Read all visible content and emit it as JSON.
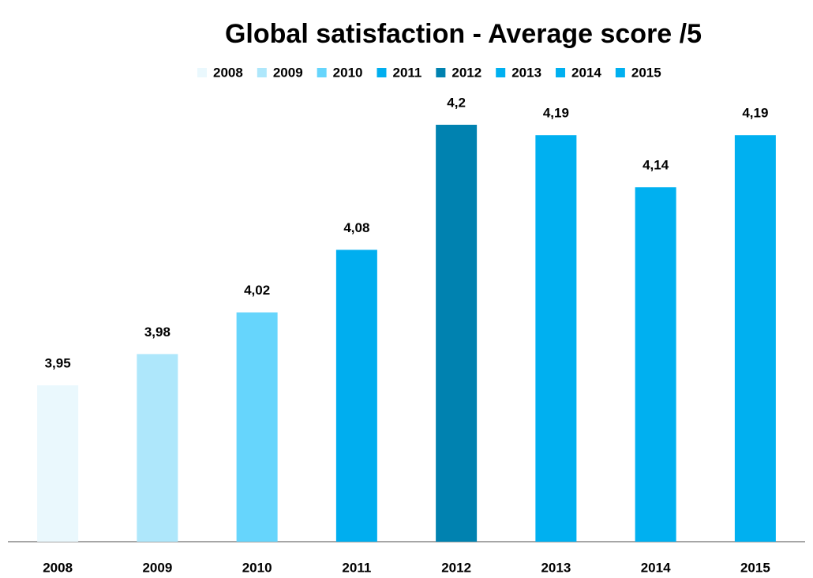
{
  "chart_data": {
    "type": "bar",
    "title": "Global satisfaction - Average score /5",
    "categories": [
      "2008",
      "2009",
      "2010",
      "2011",
      "2012",
      "2013",
      "2014",
      "2015"
    ],
    "values": [
      3.95,
      3.98,
      4.02,
      4.08,
      4.2,
      4.19,
      4.14,
      4.19
    ],
    "value_labels": [
      "3,95",
      "3,98",
      "4,02",
      "4,08",
      "4,2",
      "4,19",
      "4,14",
      "4,19"
    ],
    "colors": [
      "#eaf8fd",
      "#aee7fb",
      "#66d5fc",
      "#00aeef",
      "#0082b0",
      "#00b0f0",
      "#00b0f0",
      "#00b0f0"
    ],
    "ylim": [
      3.8,
      4.25
    ],
    "legend": "top"
  }
}
